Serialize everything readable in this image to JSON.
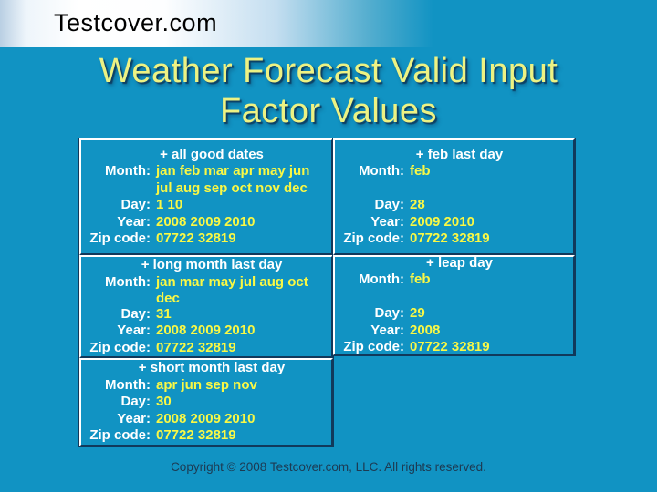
{
  "banner": {
    "brand": "Testcover.com"
  },
  "title": {
    "line1": "Weather Forecast Valid Input",
    "line2": "Factor Values"
  },
  "table": {
    "columns": [
      {
        "sections": [
          {
            "header": "+ all good dates",
            "rows": [
              {
                "label": "Month:",
                "value": "jan feb mar apr may jun\njul aug sep oct nov dec"
              },
              {
                "label": "Day:",
                "value": "1 10"
              },
              {
                "label": "Year:",
                "value": "2008 2009 2010"
              },
              {
                "label": "Zip code:",
                "value": "07722 32819"
              }
            ]
          },
          {
            "header": "+ long month last day",
            "rows": [
              {
                "label": "Month:",
                "value": "jan mar may jul aug oct\ndec"
              },
              {
                "label": "Day:",
                "value": "31"
              },
              {
                "label": "Year:",
                "value": "2008 2009 2010"
              },
              {
                "label": "Zip code:",
                "value": "07722 32819"
              }
            ]
          },
          {
            "header": "+ short month last day",
            "rows": [
              {
                "label": "Month:",
                "value": "apr jun sep nov"
              },
              {
                "label": "Day:",
                "value": "30"
              },
              {
                "label": "Year:",
                "value": "2008 2009 2010"
              },
              {
                "label": "Zip code:",
                "value": "07722 32819"
              }
            ]
          }
        ]
      },
      {
        "sections": [
          {
            "header": "+ feb last day",
            "rows": [
              {
                "label": "Month:",
                "value": "feb"
              },
              {
                "label": "",
                "value": ""
              },
              {
                "label": "Day:",
                "value": "28"
              },
              {
                "label": "Year:",
                "value": "2009 2010"
              },
              {
                "label": "Zip code:",
                "value": "07722 32819"
              }
            ]
          },
          {
            "header": "+ leap day",
            "rows": [
              {
                "label": "Month:",
                "value": "feb"
              },
              {
                "label": "",
                "value": ""
              },
              {
                "label": "Day:",
                "value": "29"
              },
              {
                "label": "Year:",
                "value": "2008"
              },
              {
                "label": "Zip code:",
                "value": "07722 32819"
              }
            ]
          }
        ]
      }
    ]
  },
  "footer": {
    "copyright": "Copyright © 2008 Testcover.com, LLC. All rights reserved."
  },
  "colors": {
    "background_teal": "#1193c3",
    "banner_white": "#ffffff",
    "title_yellow": "#edf283",
    "value_yellow": "#f9f845",
    "label_white": "#ffffff",
    "border_light": "#ffffff",
    "border_dark": "#11395b",
    "title_shadow": "#0d3658",
    "copyright_text": "#1d3a52",
    "brand_text": "#000000"
  }
}
